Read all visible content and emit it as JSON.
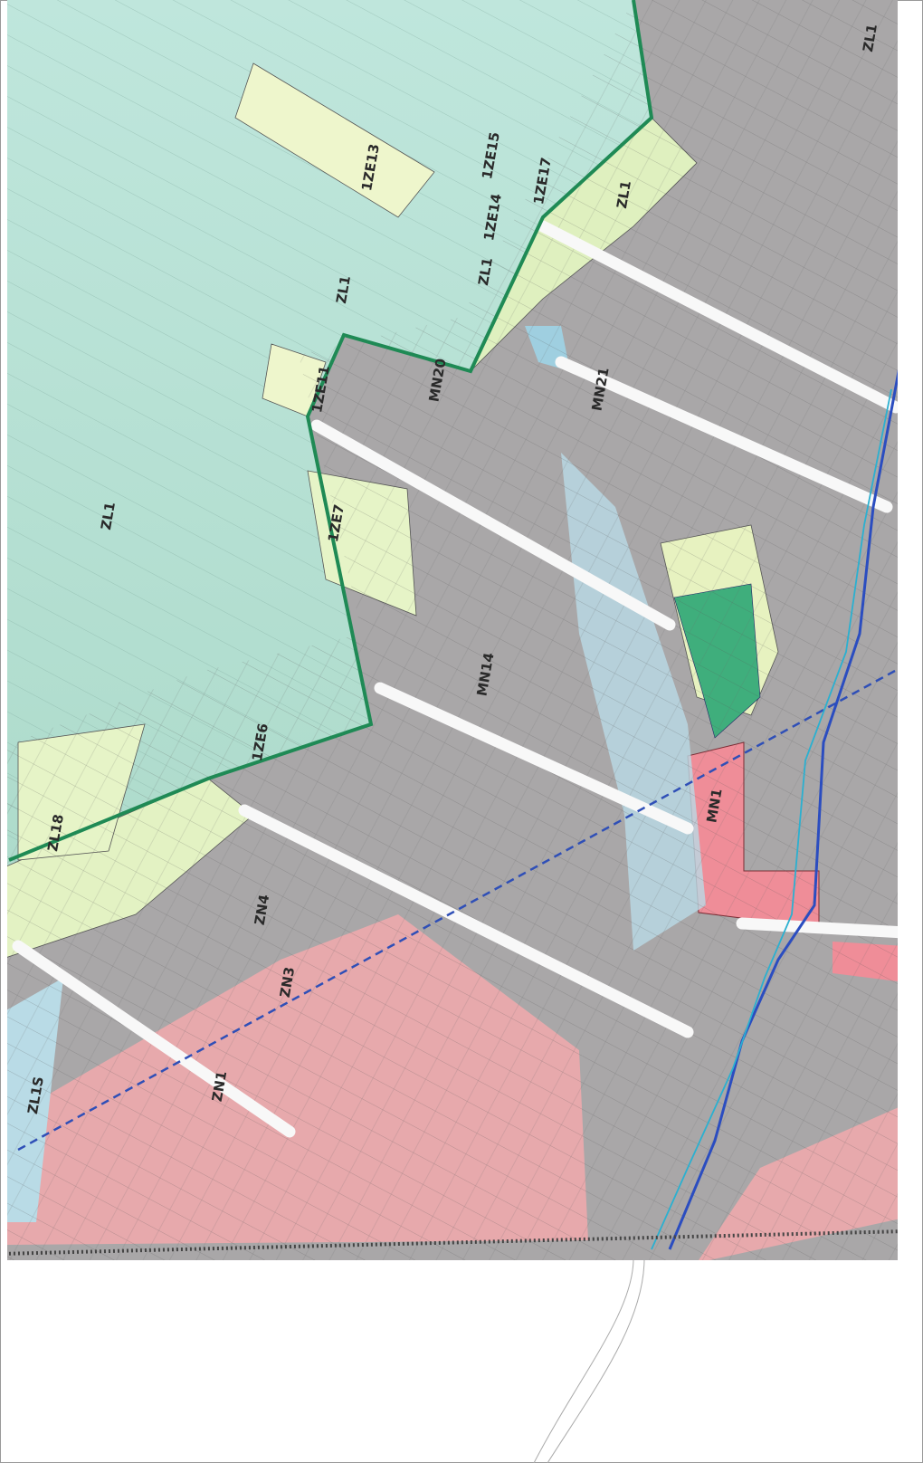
{
  "map": {
    "zones": [
      {
        "label": "ZL1"
      },
      {
        "label": "ZL1"
      },
      {
        "label": "ZL1"
      },
      {
        "label": "ZL1"
      },
      {
        "label": "ZL1"
      },
      {
        "label": "1ZE13"
      },
      {
        "label": "1ZE11"
      },
      {
        "label": "1ZE7"
      },
      {
        "label": "1ZE14"
      },
      {
        "label": "1ZE15"
      },
      {
        "label": "1ZE17"
      },
      {
        "label": "1ZE6"
      },
      {
        "label": "ZL18"
      },
      {
        "label": "ZL1S"
      },
      {
        "label": "ZN1"
      },
      {
        "label": "ZN3"
      },
      {
        "label": "ZN4"
      },
      {
        "label": "MN20"
      },
      {
        "label": "MN21"
      },
      {
        "label": "MN14"
      },
      {
        "label": "MN1"
      }
    ]
  }
}
